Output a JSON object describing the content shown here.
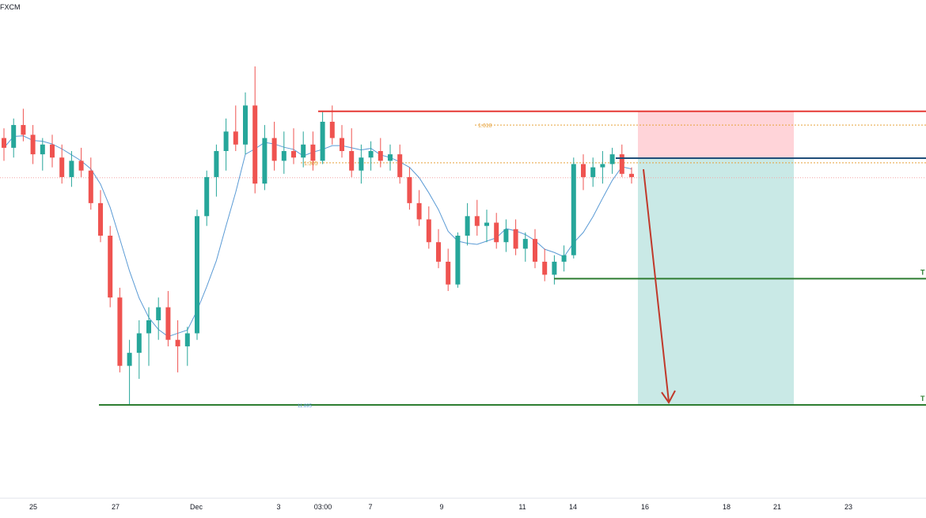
{
  "header": {
    "broker": "FXCM"
  },
  "chart_data": {
    "type": "candlestick",
    "title": "",
    "xlabel": "",
    "ylabel": "",
    "grid": false,
    "x_ticks": [
      "25",
      "27",
      "Dec",
      "3",
      "03:00",
      "7",
      "9",
      "11",
      "14",
      "16",
      "18",
      "21",
      "23"
    ],
    "price_range": [
      0,
      100
    ],
    "candles_description": "bars in relative price units (0 = lowest visible level, 100 = highest)",
    "colors": {
      "up": "#26a69a",
      "down": "#ef5350",
      "ma": "#5b9bd5",
      "stop": "#e53935",
      "entry": "#1f4e79",
      "target": "#2e7d32",
      "fib": "#e6a23c",
      "risk_zone": "#ffcdd2",
      "reward_zone": "#b2dfdb",
      "arrow": "#c0392b"
    },
    "levels": {
      "stop_loss": 90.2,
      "entry": 75.8,
      "take_profit_1": 38.8,
      "take_profit_2": 0.0,
      "current_price": 69.8
    },
    "fib_labels": [
      {
        "label": "1.618",
        "value": 86.0
      },
      {
        "label": "1.305",
        "value": 74.4
      }
    ],
    "bottom_label": "11.895",
    "tp_markers": [
      "T",
      "T"
    ],
    "candles": [
      {
        "o": 82,
        "h": 85,
        "l": 75,
        "c": 79
      },
      {
        "o": 79,
        "h": 88,
        "l": 76,
        "c": 86
      },
      {
        "o": 86,
        "h": 91,
        "l": 81,
        "c": 83
      },
      {
        "o": 83,
        "h": 86,
        "l": 74,
        "c": 77
      },
      {
        "o": 77,
        "h": 82,
        "l": 72,
        "c": 80
      },
      {
        "o": 80,
        "h": 83,
        "l": 73,
        "c": 76
      },
      {
        "o": 76,
        "h": 80,
        "l": 68,
        "c": 70
      },
      {
        "o": 70,
        "h": 78,
        "l": 67,
        "c": 75
      },
      {
        "o": 75,
        "h": 79,
        "l": 70,
        "c": 72
      },
      {
        "o": 72,
        "h": 76,
        "l": 60,
        "c": 62
      },
      {
        "o": 62,
        "h": 66,
        "l": 50,
        "c": 52
      },
      {
        "o": 52,
        "h": 55,
        "l": 30,
        "c": 33
      },
      {
        "o": 33,
        "h": 36,
        "l": 10,
        "c": 12
      },
      {
        "o": 12,
        "h": 20,
        "l": 0,
        "c": 16
      },
      {
        "o": 16,
        "h": 26,
        "l": 8,
        "c": 22
      },
      {
        "o": 22,
        "h": 30,
        "l": 12,
        "c": 26
      },
      {
        "o": 26,
        "h": 33,
        "l": 20,
        "c": 30
      },
      {
        "o": 30,
        "h": 35,
        "l": 18,
        "c": 20
      },
      {
        "o": 20,
        "h": 26,
        "l": 10,
        "c": 18
      },
      {
        "o": 18,
        "h": 24,
        "l": 12,
        "c": 22
      },
      {
        "o": 22,
        "h": 60,
        "l": 20,
        "c": 58
      },
      {
        "o": 58,
        "h": 72,
        "l": 55,
        "c": 70
      },
      {
        "o": 70,
        "h": 80,
        "l": 64,
        "c": 78
      },
      {
        "o": 78,
        "h": 88,
        "l": 72,
        "c": 84
      },
      {
        "o": 84,
        "h": 92,
        "l": 78,
        "c": 80
      },
      {
        "o": 80,
        "h": 96,
        "l": 77,
        "c": 92
      },
      {
        "o": 92,
        "h": 104,
        "l": 65,
        "c": 68
      },
      {
        "o": 68,
        "h": 86,
        "l": 66,
        "c": 82
      },
      {
        "o": 82,
        "h": 87,
        "l": 72,
        "c": 75
      },
      {
        "o": 75,
        "h": 84,
        "l": 71,
        "c": 78
      },
      {
        "o": 78,
        "h": 85,
        "l": 74,
        "c": 76
      },
      {
        "o": 76,
        "h": 84,
        "l": 73,
        "c": 80
      },
      {
        "o": 80,
        "h": 84,
        "l": 72,
        "c": 75
      },
      {
        "o": 75,
        "h": 90,
        "l": 74,
        "c": 87
      },
      {
        "o": 87,
        "h": 92,
        "l": 80,
        "c": 82
      },
      {
        "o": 82,
        "h": 86,
        "l": 76,
        "c": 78
      },
      {
        "o": 78,
        "h": 85,
        "l": 70,
        "c": 72
      },
      {
        "o": 72,
        "h": 80,
        "l": 68,
        "c": 76
      },
      {
        "o": 76,
        "h": 81,
        "l": 72,
        "c": 78
      },
      {
        "o": 78,
        "h": 82,
        "l": 73,
        "c": 75
      },
      {
        "o": 75,
        "h": 80,
        "l": 72,
        "c": 77
      },
      {
        "o": 77,
        "h": 80,
        "l": 68,
        "c": 70
      },
      {
        "o": 70,
        "h": 73,
        "l": 60,
        "c": 62
      },
      {
        "o": 62,
        "h": 66,
        "l": 55,
        "c": 57
      },
      {
        "o": 57,
        "h": 61,
        "l": 48,
        "c": 50
      },
      {
        "o": 50,
        "h": 54,
        "l": 42,
        "c": 44
      },
      {
        "o": 44,
        "h": 48,
        "l": 35,
        "c": 37
      },
      {
        "o": 37,
        "h": 53,
        "l": 36,
        "c": 52
      },
      {
        "o": 52,
        "h": 62,
        "l": 49,
        "c": 58
      },
      {
        "o": 58,
        "h": 63,
        "l": 52,
        "c": 55
      },
      {
        "o": 55,
        "h": 60,
        "l": 50,
        "c": 56
      },
      {
        "o": 56,
        "h": 59,
        "l": 48,
        "c": 50
      },
      {
        "o": 50,
        "h": 57,
        "l": 47,
        "c": 54
      },
      {
        "o": 54,
        "h": 57,
        "l": 46,
        "c": 48
      },
      {
        "o": 48,
        "h": 53,
        "l": 44,
        "c": 51
      },
      {
        "o": 51,
        "h": 54,
        "l": 42,
        "c": 44
      },
      {
        "o": 44,
        "h": 48,
        "l": 38,
        "c": 40
      },
      {
        "o": 40,
        "h": 46,
        "l": 37,
        "c": 44
      },
      {
        "o": 44,
        "h": 49,
        "l": 41,
        "c": 46
      },
      {
        "o": 46,
        "h": 76,
        "l": 45,
        "c": 74
      },
      {
        "o": 74,
        "h": 77,
        "l": 66,
        "c": 70
      },
      {
        "o": 70,
        "h": 76,
        "l": 67,
        "c": 73
      },
      {
        "o": 73,
        "h": 78,
        "l": 68,
        "c": 74
      },
      {
        "o": 74,
        "h": 79,
        "l": 71,
        "c": 77
      },
      {
        "o": 77,
        "h": 80,
        "l": 70,
        "c": 71
      },
      {
        "o": 71,
        "h": 73,
        "l": 68,
        "c": 70
      }
    ]
  }
}
